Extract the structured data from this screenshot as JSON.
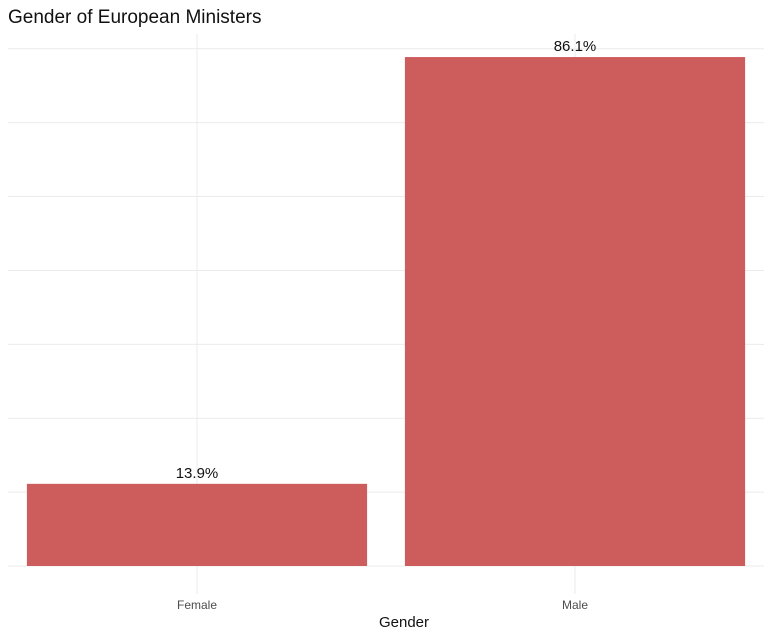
{
  "chart_data": {
    "type": "bar",
    "title": "Gender of European Ministers",
    "xlabel": "Gender",
    "ylabel": "",
    "categories": [
      "Female",
      "Male"
    ],
    "values": [
      13.9,
      86.1
    ],
    "value_labels": [
      "13.9%",
      "86.1%"
    ],
    "ylim": [
      0,
      90
    ],
    "y_axis_ticks_shown": false,
    "grid": true,
    "bar_color": "#cd5c5c"
  }
}
